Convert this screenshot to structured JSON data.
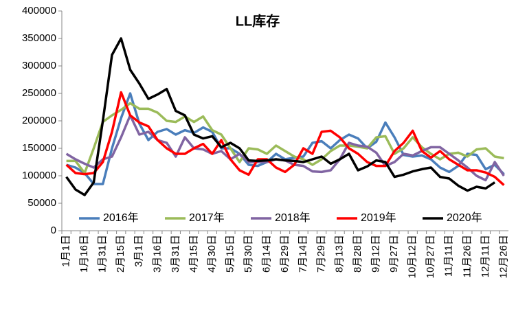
{
  "chart_data": {
    "type": "line",
    "title": "LL库存",
    "categories": [
      "1月1日",
      null,
      "1月16日",
      null,
      "1月31日",
      null,
      "2月15日",
      null,
      "3月1日",
      null,
      "3月16日",
      null,
      "3月31日",
      null,
      "4月15日",
      null,
      "4月30日",
      null,
      "5月15日",
      null,
      "5月30日",
      null,
      "6月14日",
      null,
      "6月29日",
      null,
      "7月14日",
      null,
      "7月29日",
      null,
      "8月13日",
      null,
      "8月28日",
      null,
      "9月12日",
      null,
      "9月27日",
      null,
      "10月12日",
      null,
      "10月27日",
      null,
      "11月11日",
      null,
      "11月26日",
      null,
      "12月11日",
      null,
      "12月26日"
    ],
    "series": [
      {
        "name": "2016年",
        "color": "#4a7ebb",
        "values": [
          120000,
          115000,
          105000,
          85000,
          85000,
          150000,
          205000,
          250000,
          195000,
          165000,
          180000,
          185000,
          175000,
          183000,
          178000,
          188000,
          180000,
          150000,
          150000,
          140000,
          120000,
          118000,
          125000,
          140000,
          130000,
          133000,
          135000,
          160000,
          163000,
          150000,
          165000,
          175000,
          168000,
          150000,
          162000,
          197000,
          170000,
          138000,
          135000,
          137000,
          130000,
          115000,
          107000,
          118000,
          140000,
          138000,
          112000,
          120000,
          103000
        ]
      },
      {
        "name": "2017年",
        "color": "#9bbb59",
        "values": [
          127000,
          127000,
          105000,
          150000,
          198000,
          210000,
          220000,
          232000,
          222000,
          222000,
          215000,
          200000,
          198000,
          208000,
          198000,
          208000,
          183000,
          175000,
          150000,
          125000,
          150000,
          148000,
          140000,
          155000,
          145000,
          135000,
          130000,
          120000,
          130000,
          145000,
          155000,
          155000,
          153000,
          150000,
          170000,
          172000,
          140000,
          150000,
          170000,
          152000,
          140000,
          130000,
          140000,
          142000,
          135000,
          148000,
          150000,
          135000,
          132000
        ]
      },
      {
        "name": "2018年",
        "color": "#8064a2",
        "values": [
          140000,
          130000,
          122000,
          115000,
          130000,
          135000,
          170000,
          210000,
          175000,
          180000,
          165000,
          160000,
          135000,
          170000,
          150000,
          148000,
          140000,
          145000,
          130000,
          140000,
          125000,
          125000,
          125000,
          130000,
          128000,
          120000,
          118000,
          108000,
          107000,
          110000,
          130000,
          160000,
          155000,
          153000,
          142000,
          118000,
          125000,
          140000,
          137000,
          145000,
          152000,
          152000,
          140000,
          128000,
          115000,
          100000,
          92000,
          125000,
          100000
        ]
      },
      {
        "name": "2019年",
        "color": "#ff0000",
        "values": [
          120000,
          105000,
          103000,
          105000,
          125000,
          180000,
          252000,
          210000,
          197000,
          190000,
          165000,
          150000,
          140000,
          140000,
          150000,
          158000,
          140000,
          165000,
          130000,
          110000,
          102000,
          130000,
          130000,
          115000,
          107000,
          120000,
          150000,
          140000,
          180000,
          182000,
          170000,
          150000,
          140000,
          125000,
          118000,
          118000,
          145000,
          160000,
          182000,
          145000,
          133000,
          145000,
          130000,
          120000,
          110000,
          110000,
          106000,
          98000,
          83000
        ]
      },
      {
        "name": "2020年",
        "color": "#000000",
        "values": [
          98000,
          75000,
          65000,
          88000,
          200000,
          320000,
          350000,
          293000,
          268000,
          240000,
          248000,
          258000,
          218000,
          210000,
          175000,
          168000,
          172000,
          152000,
          160000,
          150000,
          128000,
          127000,
          128000,
          130000,
          128000,
          127000,
          125000,
          130000,
          135000,
          122000,
          130000,
          140000,
          110000,
          117000,
          128000,
          125000,
          98000,
          102000,
          108000,
          112000,
          115000,
          98000,
          95000,
          82000,
          73000,
          80000,
          77000,
          88000,
          null
        ]
      }
    ],
    "ylim": [
      0,
      400000
    ],
    "yticks": [
      0,
      50000,
      100000,
      150000,
      200000,
      250000,
      300000,
      350000,
      400000
    ],
    "legend": "bottom"
  }
}
